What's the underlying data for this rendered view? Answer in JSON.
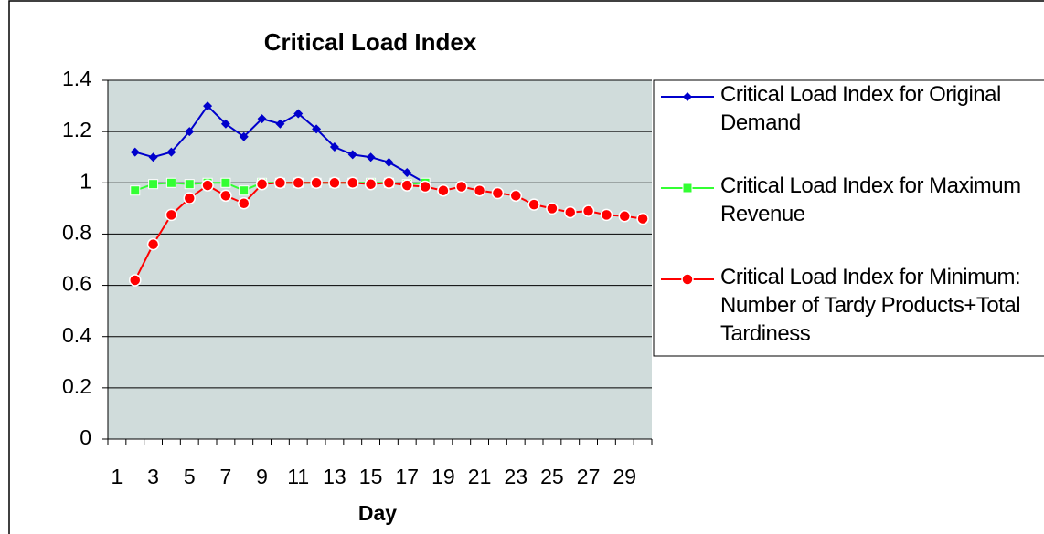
{
  "chart_data": {
    "type": "line",
    "title": "Critical Load Index",
    "x_label": "Day",
    "categories": [
      1,
      null,
      3,
      null,
      5,
      null,
      7,
      null,
      9,
      null,
      11,
      null,
      13,
      null,
      15,
      null,
      17,
      null,
      19,
      null,
      21,
      null,
      23,
      null,
      25,
      null,
      27,
      null,
      29,
      null
    ],
    "series": [
      {
        "name": "Critical Load Index for Original Demand",
        "color": "#0000cc",
        "marker": "diamond",
        "values": [
          null,
          1.12,
          1.1,
          1.12,
          1.2,
          1.3,
          1.23,
          1.18,
          1.25,
          1.23,
          1.27,
          1.21,
          1.14,
          1.11,
          1.1,
          1.08,
          1.04,
          1.0,
          null,
          null,
          null,
          null,
          null,
          null,
          null,
          null,
          null,
          null,
          null,
          null
        ]
      },
      {
        "name": "Critical Load Index for Maximum Revenue",
        "color": "#33ff33",
        "marker": "square",
        "values": [
          null,
          0.97,
          0.995,
          1.0,
          0.995,
          1.0,
          1.0,
          0.97,
          1.0,
          1.0,
          1.0,
          1.0,
          1.0,
          1.0,
          1.0,
          1.0,
          0.995,
          1.0,
          null,
          null,
          null,
          null,
          null,
          null,
          null,
          null,
          null,
          null,
          null,
          null
        ]
      },
      {
        "name": "Critical Load Index for Minimum: Number of Tardy Products+Total Tardiness",
        "color": "#ff0000",
        "marker": "circle",
        "values": [
          null,
          0.62,
          0.76,
          0.875,
          0.94,
          0.99,
          0.95,
          0.92,
          0.995,
          1.0,
          1.0,
          1.0,
          1.0,
          1.0,
          0.995,
          1.0,
          0.99,
          0.985,
          0.97,
          0.985,
          0.97,
          0.96,
          0.95,
          0.915,
          0.9,
          0.885,
          0.89,
          0.875,
          0.87,
          0.86
        ]
      }
    ],
    "ylim": [
      0,
      1.4
    ],
    "yticks": [
      0,
      0.2,
      0.4,
      0.6,
      0.8,
      1,
      1.2,
      1.4
    ],
    "grid": true,
    "legend": "right",
    "plot_background": "#d0dcdb"
  }
}
